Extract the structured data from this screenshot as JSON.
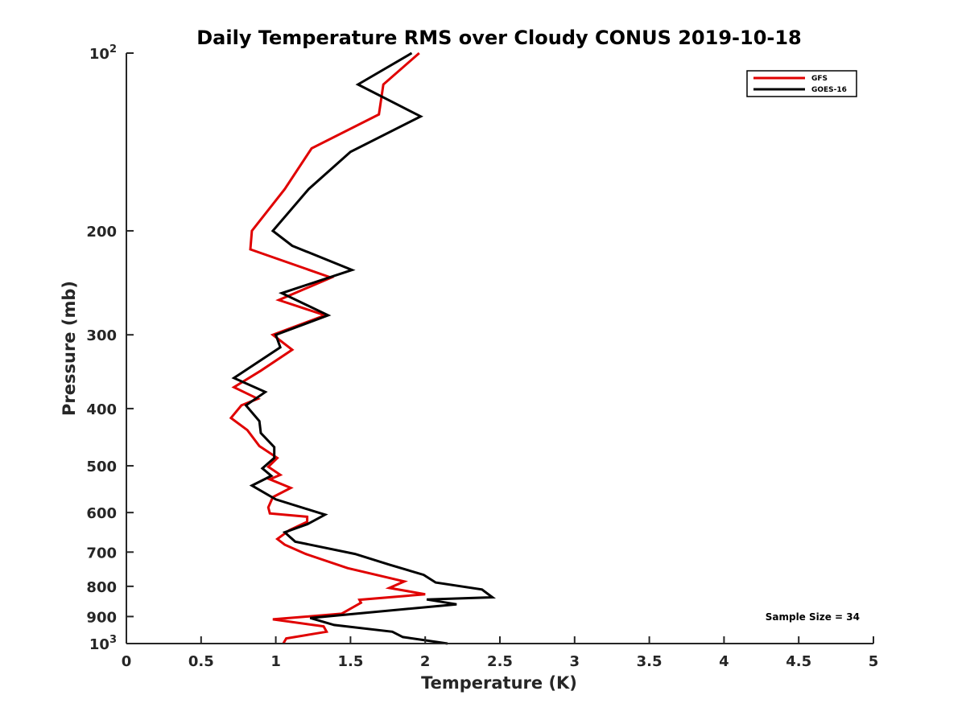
{
  "chart_data": {
    "type": "line",
    "title": "Daily Temperature RMS over Cloudy CONUS 2019-10-18",
    "xlabel": "Temperature (K)",
    "ylabel": "Pressure (mb)",
    "xlim": [
      0,
      5
    ],
    "ylim": [
      100,
      1000
    ],
    "yscale": "log",
    "y_reversed": true,
    "grid": false,
    "legend_position": "top-right",
    "x_ticks": [
      {
        "value": 0,
        "label": "0"
      },
      {
        "value": 0.5,
        "label": "0.5"
      },
      {
        "value": 1,
        "label": "1"
      },
      {
        "value": 1.5,
        "label": "1.5"
      },
      {
        "value": 2,
        "label": "2"
      },
      {
        "value": 2.5,
        "label": "2.5"
      },
      {
        "value": 3,
        "label": "3"
      },
      {
        "value": 3.5,
        "label": "3.5"
      },
      {
        "value": 4,
        "label": "4"
      },
      {
        "value": 4.5,
        "label": "4.5"
      },
      {
        "value": 5,
        "label": "5"
      }
    ],
    "y_ticks": [
      {
        "value": 100,
        "base": "10",
        "exp": "2"
      },
      {
        "value": 200,
        "base": "200",
        "exp": ""
      },
      {
        "value": 300,
        "base": "300",
        "exp": ""
      },
      {
        "value": 400,
        "base": "400",
        "exp": ""
      },
      {
        "value": 500,
        "base": "500",
        "exp": ""
      },
      {
        "value": 600,
        "base": "600",
        "exp": ""
      },
      {
        "value": 700,
        "base": "700",
        "exp": ""
      },
      {
        "value": 800,
        "base": "800",
        "exp": ""
      },
      {
        "value": 900,
        "base": "900",
        "exp": ""
      },
      {
        "value": 1000,
        "base": "10",
        "exp": "3"
      }
    ],
    "series": [
      {
        "name": "GFS",
        "color": "#e00000",
        "points": [
          [
            1.96,
            100
          ],
          [
            1.72,
            113
          ],
          [
            1.69,
            127
          ],
          [
            1.24,
            145
          ],
          [
            1.06,
            170
          ],
          [
            0.84,
            200
          ],
          [
            0.83,
            215
          ],
          [
            1.37,
            240
          ],
          [
            1.02,
            262
          ],
          [
            1.33,
            278
          ],
          [
            0.98,
            300
          ],
          [
            1.11,
            318
          ],
          [
            0.9,
            345
          ],
          [
            0.72,
            368
          ],
          [
            0.88,
            385
          ],
          [
            0.77,
            395
          ],
          [
            0.7,
            415
          ],
          [
            0.81,
            435
          ],
          [
            0.89,
            463
          ],
          [
            1.01,
            485
          ],
          [
            0.95,
            502
          ],
          [
            1.03,
            518
          ],
          [
            0.96,
            527
          ],
          [
            1.1,
            545
          ],
          [
            0.98,
            565
          ],
          [
            0.95,
            588
          ],
          [
            0.96,
            602
          ],
          [
            1.21,
            610
          ],
          [
            1.21,
            622
          ],
          [
            1.09,
            643
          ],
          [
            1.01,
            665
          ],
          [
            1.06,
            680
          ],
          [
            1.2,
            705
          ],
          [
            1.48,
            745
          ],
          [
            1.86,
            785
          ],
          [
            1.76,
            805
          ],
          [
            2.0,
            825
          ],
          [
            1.56,
            843
          ],
          [
            1.57,
            853
          ],
          [
            1.44,
            890
          ],
          [
            0.98,
            910
          ],
          [
            1.32,
            935
          ],
          [
            1.34,
            955
          ],
          [
            1.07,
            980
          ],
          [
            1.05,
            1000
          ]
        ]
      },
      {
        "name": "GOES-16",
        "color": "#000000",
        "points": [
          [
            1.91,
            100
          ],
          [
            1.55,
            113
          ],
          [
            1.97,
            128
          ],
          [
            1.5,
            147
          ],
          [
            1.22,
            170
          ],
          [
            0.98,
            200
          ],
          [
            1.11,
            212
          ],
          [
            1.51,
            233
          ],
          [
            1.04,
            255
          ],
          [
            1.35,
            278
          ],
          [
            1.0,
            300
          ],
          [
            1.03,
            315
          ],
          [
            0.72,
            355
          ],
          [
            0.93,
            375
          ],
          [
            0.8,
            395
          ],
          [
            0.89,
            420
          ],
          [
            0.9,
            440
          ],
          [
            0.99,
            465
          ],
          [
            0.99,
            485
          ],
          [
            0.91,
            505
          ],
          [
            0.97,
            520
          ],
          [
            0.84,
            540
          ],
          [
            1.0,
            570
          ],
          [
            1.33,
            605
          ],
          [
            1.21,
            628
          ],
          [
            1.06,
            648
          ],
          [
            1.13,
            672
          ],
          [
            1.53,
            705
          ],
          [
            1.76,
            735
          ],
          [
            1.99,
            765
          ],
          [
            2.07,
            788
          ],
          [
            2.38,
            810
          ],
          [
            2.45,
            835
          ],
          [
            2.01,
            842
          ],
          [
            2.21,
            858
          ],
          [
            1.23,
            905
          ],
          [
            1.39,
            930
          ],
          [
            1.78,
            955
          ],
          [
            1.85,
            975
          ],
          [
            2.15,
            1000
          ]
        ]
      }
    ],
    "annotation": "Sample Size = 34"
  }
}
